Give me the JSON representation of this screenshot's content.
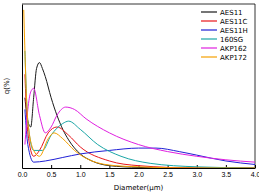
{
  "chart_data": {
    "type": "line",
    "x_label": "Diameter(μm)",
    "y_label": "q(%)",
    "xlim": [
      0,
      4
    ],
    "ylim": [
      0,
      14
    ],
    "xticks": [
      {
        "value": 0,
        "label": "0.0"
      },
      0.5,
      {
        "value": 1,
        "label": "1.0"
      },
      1.5,
      {
        "value": 2,
        "label": "2.0"
      },
      2.5,
      {
        "value": 3,
        "label": "3.0"
      },
      3.5,
      {
        "value": 4,
        "label": "4.0"
      }
    ],
    "tick_labels": "x",
    "legend": "upper right",
    "series": [
      {
        "name": "AES11",
        "color": "#1a1a1a",
        "x": [
          0.05,
          0.1,
          0.15,
          0.2,
          0.25,
          0.3,
          0.35,
          0.4,
          0.5,
          0.6,
          0.7,
          0.8,
          1.0,
          1.2,
          1.5,
          2.0,
          2.5,
          3.0,
          4.0
        ],
        "values": [
          6,
          4,
          3.5,
          6,
          8.5,
          9,
          8.5,
          7.8,
          6,
          4.5,
          3.3,
          2.4,
          1.2,
          0.6,
          0.2,
          0.05,
          0,
          0,
          0
        ]
      },
      {
        "name": "AES11C",
        "color": "#e8161b",
        "x": [
          0.05,
          0.1,
          0.2,
          0.3,
          0.45,
          0.6,
          0.8,
          1.0,
          1.5,
          2.0,
          3.0,
          4.0
        ],
        "values": [
          8,
          3,
          1,
          1.5,
          3,
          3.5,
          2.8,
          1.8,
          0.6,
          0.2,
          0,
          0
        ]
      },
      {
        "name": "AES11H",
        "color": "#1f1fd6",
        "x": [
          0.05,
          0.1,
          0.2,
          0.4,
          0.7,
          1.0,
          1.5,
          2.0,
          2.3,
          2.7,
          3.0,
          3.5,
          4.0
        ],
        "values": [
          5,
          2,
          0.5,
          0.6,
          0.9,
          1.2,
          1.5,
          1.7,
          1.7,
          1.4,
          1.1,
          0.6,
          0.3
        ]
      },
      {
        "name": "160SG",
        "color": "#1aa6a6",
        "x": [
          0.05,
          0.1,
          0.2,
          0.35,
          0.5,
          0.7,
          0.8,
          1.0,
          1.3,
          1.7,
          2.2,
          3.0,
          4.0
        ],
        "values": [
          10,
          4,
          1.5,
          1.5,
          2.8,
          3.8,
          4,
          3.3,
          2,
          1,
          0.4,
          0.1,
          0
        ]
      },
      {
        "name": "AKP162",
        "color": "#e020e0",
        "x": [
          0.05,
          0.1,
          0.15,
          0.2,
          0.3,
          0.4,
          0.5,
          0.6,
          0.75,
          0.9,
          1.1,
          1.5,
          2.0,
          2.5,
          3.0,
          3.5,
          4.0
        ],
        "values": [
          2,
          5,
          6.5,
          6.8,
          4.5,
          3,
          3.5,
          4.5,
          5.2,
          5,
          4.2,
          3,
          2,
          1.4,
          1,
          0.7,
          0.5
        ]
      },
      {
        "name": "AKP172",
        "color": "#f5a000",
        "x": [
          0.03,
          0.1,
          0.2,
          0.3,
          0.45,
          0.55,
          0.7,
          0.9,
          1.2,
          1.6,
          2.0,
          3.0,
          4.0
        ],
        "values": [
          13.5,
          4,
          1.5,
          1,
          2.5,
          3,
          2.5,
          1.5,
          0.6,
          0.2,
          0.1,
          0,
          0
        ]
      }
    ]
  }
}
